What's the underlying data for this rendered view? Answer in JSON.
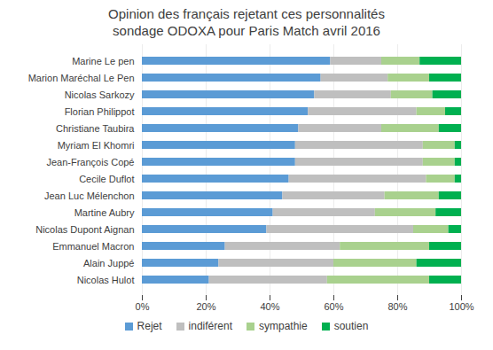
{
  "chart_data": {
    "type": "bar",
    "title": "Opinion des français rejetant ces personnalités",
    "subtitle": "sondage ODOXA pour Paris Match avril 2016",
    "orientation": "horizontal",
    "stacked": true,
    "grid": true,
    "legend": "bottom",
    "categories": [
      "Marine Le pen",
      "Marion Maréchal Le Pen",
      "Nicolas Sarkozy",
      "Florian Philippot",
      "Christiane Taubira",
      "Myriam El Khomri",
      "Jean-François Copé",
      "Cecile Duflot",
      "Jean Luc Mélenchon",
      "Martine Aubry",
      "Nicolas Dupont Aignan",
      "Emmanuel Macron",
      "Alain Juppé",
      "Nicolas Hulot"
    ],
    "series": [
      {
        "name": "Rejet",
        "color": "#5b9bd5",
        "values": [
          59,
          56,
          54,
          52,
          49,
          48,
          48,
          46,
          44,
          41,
          39,
          26,
          24,
          21
        ]
      },
      {
        "name": "indiférent",
        "color": "#bfbfbf",
        "values": [
          16,
          21,
          24,
          34,
          26,
          40,
          40,
          43,
          32,
          32,
          46,
          36,
          36,
          37
        ]
      },
      {
        "name": "sympathie",
        "color": "#a9d18e",
        "values": [
          12,
          13,
          13,
          9,
          18,
          10,
          10,
          9,
          17,
          19,
          11,
          28,
          26,
          32
        ]
      },
      {
        "name": "soutien",
        "color": "#00b050",
        "values": [
          13,
          10,
          9,
          5,
          7,
          2,
          2,
          2,
          7,
          8,
          4,
          10,
          14,
          10
        ]
      }
    ],
    "xlim": [
      0,
      100
    ],
    "xticks": [
      {
        "value": 0,
        "label": "0%"
      },
      {
        "value": 20,
        "label": "20%"
      },
      {
        "value": 40,
        "label": "40%"
      },
      {
        "value": 60,
        "label": "60%"
      },
      {
        "value": 80,
        "label": "80%"
      },
      {
        "value": 100,
        "label": "100%"
      }
    ]
  }
}
